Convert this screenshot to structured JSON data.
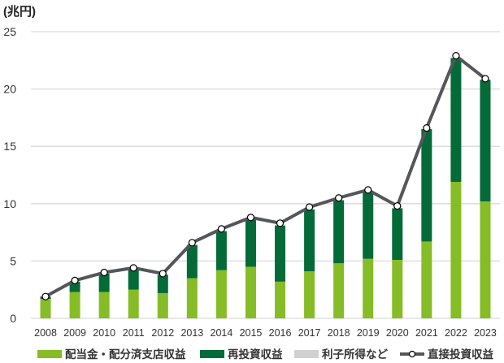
{
  "chart_data": {
    "type": "bar",
    "stacked": true,
    "unit_label": "(兆円)",
    "ylim": [
      0,
      25
    ],
    "yticks": [
      0,
      5,
      10,
      15,
      20,
      25
    ],
    "grid": true,
    "legend_position": "bottom",
    "categories": [
      "2008",
      "2009",
      "2010",
      "2011",
      "2012",
      "2013",
      "2014",
      "2015",
      "2016",
      "2017",
      "2018",
      "2019",
      "2020",
      "2021",
      "2022",
      "2023"
    ],
    "series": [
      {
        "name": "配当金・配分済支店収益",
        "type": "bar",
        "color": "#86bc25",
        "values": [
          1.7,
          2.3,
          2.3,
          2.5,
          2.2,
          3.5,
          4.2,
          4.5,
          3.2,
          4.1,
          4.8,
          5.2,
          5.1,
          6.7,
          11.9,
          10.2
        ]
      },
      {
        "name": "再投資収益",
        "type": "bar",
        "color": "#046a38",
        "values": [
          0.2,
          0.9,
          1.6,
          1.8,
          1.6,
          2.9,
          3.4,
          4.1,
          4.9,
          5.4,
          5.5,
          5.8,
          4.5,
          9.8,
          10.8,
          10.6
        ]
      },
      {
        "name": "利子所得など",
        "type": "bar",
        "color": "#d0d0d0",
        "values": [
          0,
          0,
          0,
          0,
          0,
          0,
          0,
          0,
          0,
          0,
          0,
          0,
          0,
          0,
          0,
          0
        ]
      },
      {
        "name": "直接投資収益",
        "type": "line",
        "color": "#53565a",
        "values": [
          1.9,
          3.3,
          4.0,
          4.4,
          3.9,
          6.6,
          7.8,
          8.8,
          8.3,
          9.7,
          10.5,
          11.2,
          9.8,
          16.6,
          22.9,
          20.9
        ]
      }
    ]
  }
}
